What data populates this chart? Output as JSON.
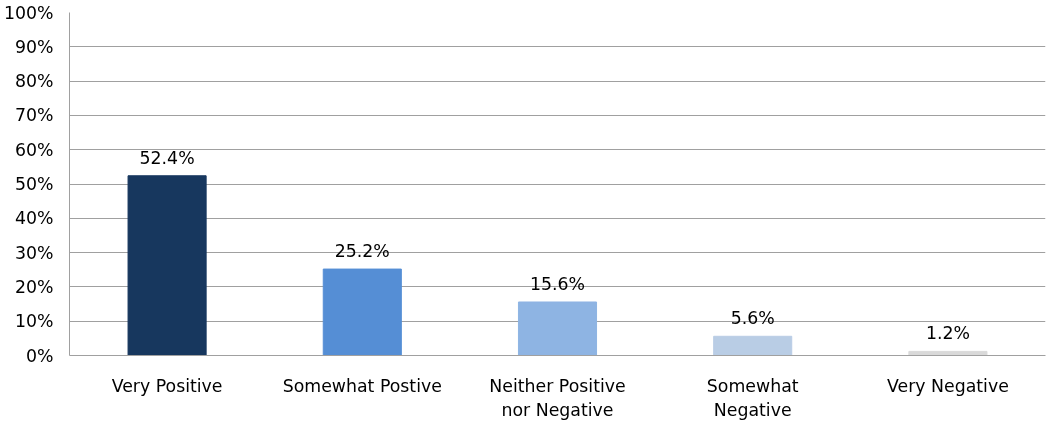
{
  "chart_data": {
    "type": "bar",
    "categories": [
      "Very Positive",
      "Somewhat Postive",
      "Neither Positive\nnor Negative",
      "Somewhat\nNegative",
      "Very Negative"
    ],
    "values": [
      52.4,
      25.2,
      15.6,
      5.6,
      1.2
    ],
    "colors": [
      "#17375e",
      "#558ed5",
      "#8eb4e3",
      "#b9cde5",
      "#d9d9d9"
    ],
    "value_labels": [
      "52.4%",
      "25.2%",
      "15.6%",
      "5.6%",
      "1.2%"
    ],
    "ylim": [
      0,
      100
    ],
    "yticks": [
      {
        "value": 0,
        "label": "0%"
      },
      {
        "value": 10,
        "label": "10%"
      },
      {
        "value": 20,
        "label": "20%"
      },
      {
        "value": 30,
        "label": "30%"
      },
      {
        "value": 40,
        "label": "40%"
      },
      {
        "value": 50,
        "label": "50%"
      },
      {
        "value": 60,
        "label": "60%"
      },
      {
        "value": 70,
        "label": "70%"
      },
      {
        "value": 80,
        "label": "80%"
      },
      {
        "value": 90,
        "label": "90%"
      },
      {
        "value": 100,
        "label": "100%"
      }
    ],
    "grid": "y"
  }
}
